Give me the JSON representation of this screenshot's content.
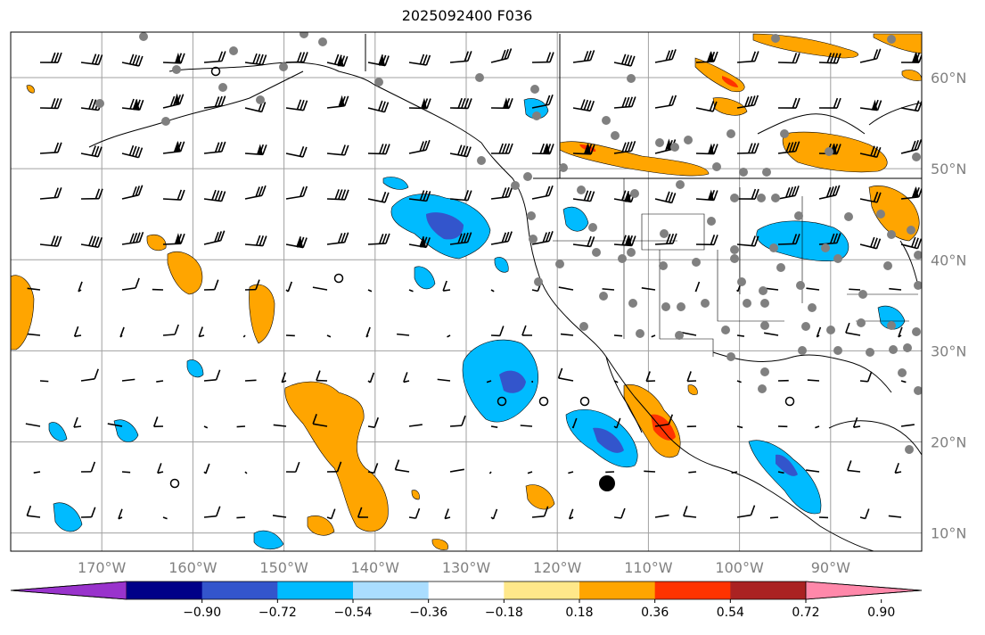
{
  "title": "2025092400 F036",
  "map": {
    "lon_range": [
      -180,
      -80
    ],
    "lat_range": [
      8,
      65
    ],
    "grid": true,
    "lat_ticks": [
      {
        "value": 60,
        "label": "60°N"
      },
      {
        "value": 50,
        "label": "50°N"
      },
      {
        "value": 40,
        "label": "40°N"
      },
      {
        "value": 30,
        "label": "30°N"
      },
      {
        "value": 20,
        "label": "20°N"
      },
      {
        "value": 10,
        "label": "10°N"
      }
    ],
    "lon_ticks": [
      {
        "value": -170,
        "label": "170°W"
      },
      {
        "value": -160,
        "label": "160°W"
      },
      {
        "value": -150,
        "label": "150°W"
      },
      {
        "value": -140,
        "label": "140°W"
      },
      {
        "value": -130,
        "label": "130°W"
      },
      {
        "value": -120,
        "label": "120°W"
      },
      {
        "value": -110,
        "label": "110°W"
      },
      {
        "value": -100,
        "label": "100°W"
      },
      {
        "value": -90,
        "label": "90°W"
      }
    ],
    "label_color": "#808080"
  },
  "colorbar": {
    "ticks": [
      "−0.90",
      "−0.72",
      "−0.54",
      "−0.36",
      "−0.18",
      "0.18",
      "0.36",
      "0.54",
      "0.72",
      "0.90"
    ],
    "colors": [
      "#9933cc",
      "#000088",
      "#3355cc",
      "#00bbff",
      "#aaddff",
      "#ffffff",
      "#ffe88a",
      "#ffa500",
      "#ff3300",
      "#aa2222",
      "#ff88aa"
    ]
  },
  "colors": {
    "coastline": "#000000",
    "station_marker": "#808080",
    "center_marker": "#000000"
  }
}
